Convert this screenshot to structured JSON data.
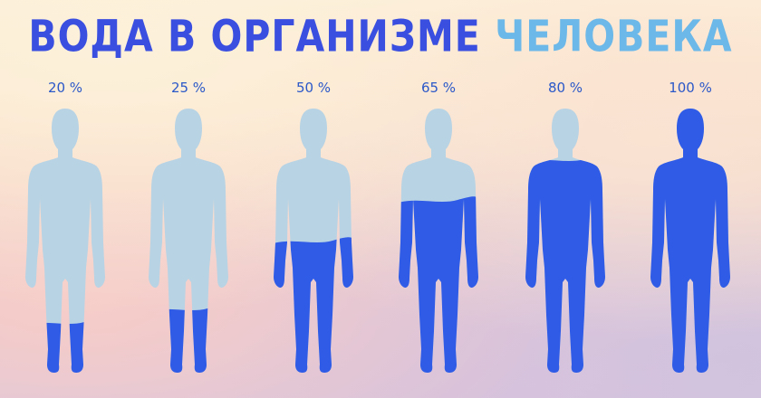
{
  "title": {
    "part1": "ВОДА В ОРГАНИЗМЕ",
    "part2": "ЧЕЛОВЕКА"
  },
  "colors": {
    "dark": "#2f5be6",
    "light": "#b8d3e4",
    "title_dark": "#3a4fe0",
    "title_light": "#6cb8e8"
  },
  "figures": [
    {
      "label": "20 %",
      "fill": 0.2
    },
    {
      "label": "25 %",
      "fill": 0.25
    },
    {
      "label": "50 %",
      "fill": 0.5
    },
    {
      "label": "65 %",
      "fill": 0.65
    },
    {
      "label": "80 %",
      "fill": 0.8
    },
    {
      "label": "100 %",
      "fill": 1.0
    }
  ]
}
